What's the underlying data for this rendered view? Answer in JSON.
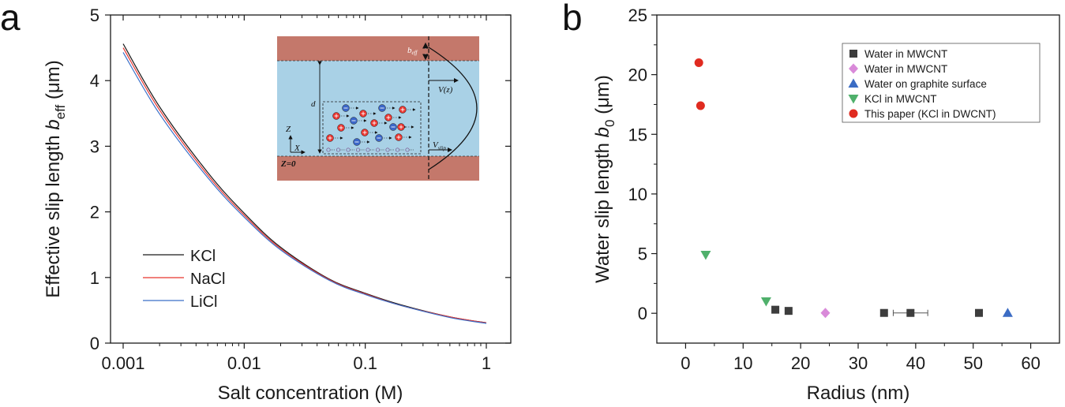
{
  "panels": {
    "a": "a",
    "b": "b"
  },
  "chart_data": [
    {
      "type": "line",
      "id": "a",
      "xscale": "log",
      "xlim": [
        0.001,
        1
      ],
      "ylim": [
        0,
        5
      ],
      "xticks": [
        0.001,
        0.01,
        0.1,
        1
      ],
      "xtick_labels": [
        "0.001",
        "0.01",
        "0.1",
        "1"
      ],
      "yticks": [
        0,
        1,
        2,
        3,
        4,
        5
      ],
      "ytick_labels": [
        "0",
        "1",
        "2",
        "3",
        "4",
        "5"
      ],
      "xlabel": "Salt concentration (M)",
      "ylabel_main": "Effective slip length ",
      "ylabel_italic": "b",
      "ylabel_sub": "eff",
      "ylabel_unit": " (μm)",
      "x": [
        0.001,
        0.002,
        0.005,
        0.01,
        0.02,
        0.05,
        0.1,
        0.2,
        0.5,
        1
      ],
      "series": [
        {
          "name": "KCl",
          "color": "#1a1a1a",
          "values": [
            4.56,
            3.6,
            2.6,
            1.98,
            1.46,
            0.98,
            0.76,
            0.58,
            0.4,
            0.31
          ]
        },
        {
          "name": "NaCl",
          "color": "#e8342f",
          "values": [
            4.5,
            3.55,
            2.56,
            1.95,
            1.44,
            0.97,
            0.75,
            0.57,
            0.4,
            0.31
          ]
        },
        {
          "name": "LiCl",
          "color": "#3a6fc8",
          "values": [
            4.43,
            3.49,
            2.52,
            1.92,
            1.42,
            0.96,
            0.74,
            0.57,
            0.39,
            0.3
          ]
        }
      ],
      "legend": [
        "KCl",
        "NaCl",
        "LiCl"
      ],
      "legend_position": "lower-left",
      "inset": {
        "labels": {
          "b": "b",
          "b_sub": "eff",
          "v": "V(z)",
          "d": "d",
          "z": "Z",
          "x": "X",
          "z0": "Z=0",
          "vslip": "V",
          "vslip_sub": "slip"
        },
        "colors": {
          "wall": "#c4786b",
          "fluid": "#a9d1e6",
          "cation": "#e8342f",
          "anion": "#3b67c8"
        }
      }
    },
    {
      "type": "scatter",
      "id": "b",
      "xlim": [
        -5,
        65
      ],
      "ylim": [
        -2.5,
        25
      ],
      "xticks": [
        0,
        10,
        20,
        30,
        40,
        50,
        60
      ],
      "xtick_labels": [
        "0",
        "10",
        "20",
        "30",
        "40",
        "50",
        "60"
      ],
      "yticks": [
        0,
        5,
        10,
        15,
        20,
        25
      ],
      "ytick_labels": [
        "0",
        "5",
        "10",
        "15",
        "20",
        "25"
      ],
      "xlabel": "Radius (nm)",
      "ylabel_main": "Water slip length ",
      "ylabel_italic": "b",
      "ylabel_sub": "0",
      "ylabel_unit": " (μm)",
      "series": [
        {
          "name": "Water in MWCNT",
          "marker": "square",
          "color": "#3d3d3d",
          "points": [
            [
              15.6,
              0.3
            ],
            [
              17.9,
              0.2
            ],
            [
              34.5,
              0.03
            ],
            [
              39.1,
              0.03
            ],
            [
              51.0,
              0.03
            ]
          ],
          "xerr": [
            null,
            null,
            null,
            3,
            null
          ]
        },
        {
          "name": "Water in MWCNT",
          "marker": "diamond",
          "color": "#d98ad9",
          "points": [
            [
              24.3,
              0.03
            ]
          ]
        },
        {
          "name": "Water on graphite surface",
          "marker": "triangle-up",
          "color": "#3b6cc4",
          "points": [
            [
              56.0,
              0.03
            ]
          ]
        },
        {
          "name": "KCl in MWCNT",
          "marker": "triangle-down",
          "color": "#4fb06b",
          "points": [
            [
              3.5,
              4.9
            ],
            [
              14.0,
              1.0
            ]
          ]
        },
        {
          "name": "This paper (KCl in DWCNT)",
          "marker": "circle",
          "color": "#e02b20",
          "points": [
            [
              2.3,
              21.0
            ],
            [
              2.6,
              17.4
            ]
          ]
        }
      ],
      "legend_position": "top-right"
    }
  ]
}
